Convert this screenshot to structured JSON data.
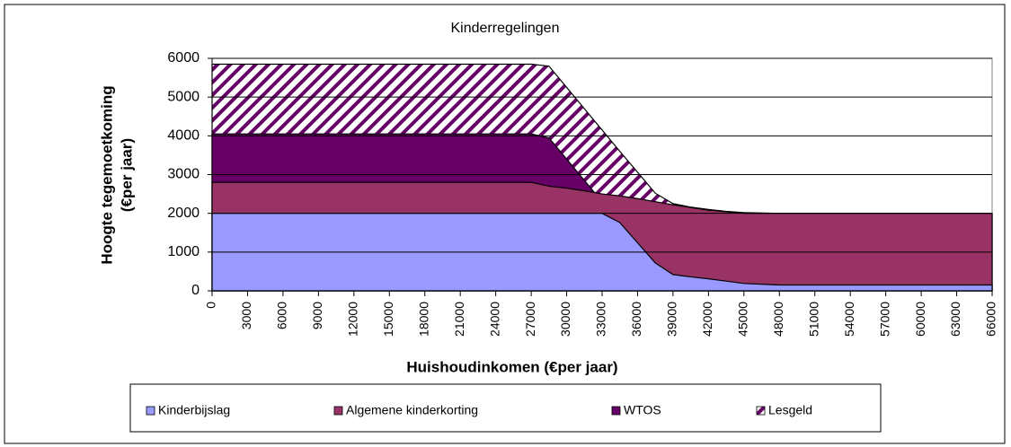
{
  "chart_data": {
    "type": "area",
    "title": "Kinderregelingen",
    "y_label": [
      "Hoogte tegemoetkoming",
      "(€per jaar)"
    ],
    "x_label": "Huishoudinkomen (€per jaar)",
    "x": [
      0,
      27000,
      28500,
      30000,
      31500,
      33000,
      34500,
      36000,
      37500,
      39000,
      40500,
      42000,
      43500,
      45000,
      48000,
      66000
    ],
    "series": [
      {
        "name": "Kinderbijslag",
        "color": "#9999ff",
        "values": [
          2000,
          2000,
          2000,
          2000,
          2000,
          2000,
          1760,
          1240,
          720,
          420,
          360,
          310,
          250,
          190,
          150,
          150
        ]
      },
      {
        "name": "Algemene kinderkorting",
        "color": "#993366",
        "values": [
          2800,
          2800,
          2700,
          2650,
          2580,
          2500,
          2450,
          2380,
          2300,
          2220,
          2150,
          2080,
          2040,
          2000,
          2000,
          2000
        ]
      },
      {
        "name": "WTOS",
        "color": "#660066",
        "values": [
          4050,
          4050,
          3950,
          3400,
          2850,
          2300,
          1760,
          1240,
          720,
          420,
          360,
          310,
          250,
          190,
          150,
          150
        ]
      },
      {
        "name": "Lesgeld",
        "color": "#660066",
        "hatch": true,
        "values": [
          5850,
          5850,
          5800,
          5250,
          4700,
          4150,
          3600,
          3060,
          2520,
          2250,
          2160,
          2100,
          2050,
          2020,
          2000,
          2000
        ]
      }
    ],
    "xlim": [
      0,
      66000
    ],
    "xticks": [
      0,
      3000,
      6000,
      9000,
      12000,
      15000,
      18000,
      21000,
      24000,
      27000,
      30000,
      33000,
      36000,
      39000,
      42000,
      45000,
      48000,
      51000,
      54000,
      57000,
      60000,
      63000,
      66000
    ],
    "ylim": [
      0,
      6000
    ],
    "yticks": [
      0,
      1000,
      2000,
      3000,
      4000,
      5000,
      6000
    ],
    "grid": true,
    "legend": "bottom"
  }
}
